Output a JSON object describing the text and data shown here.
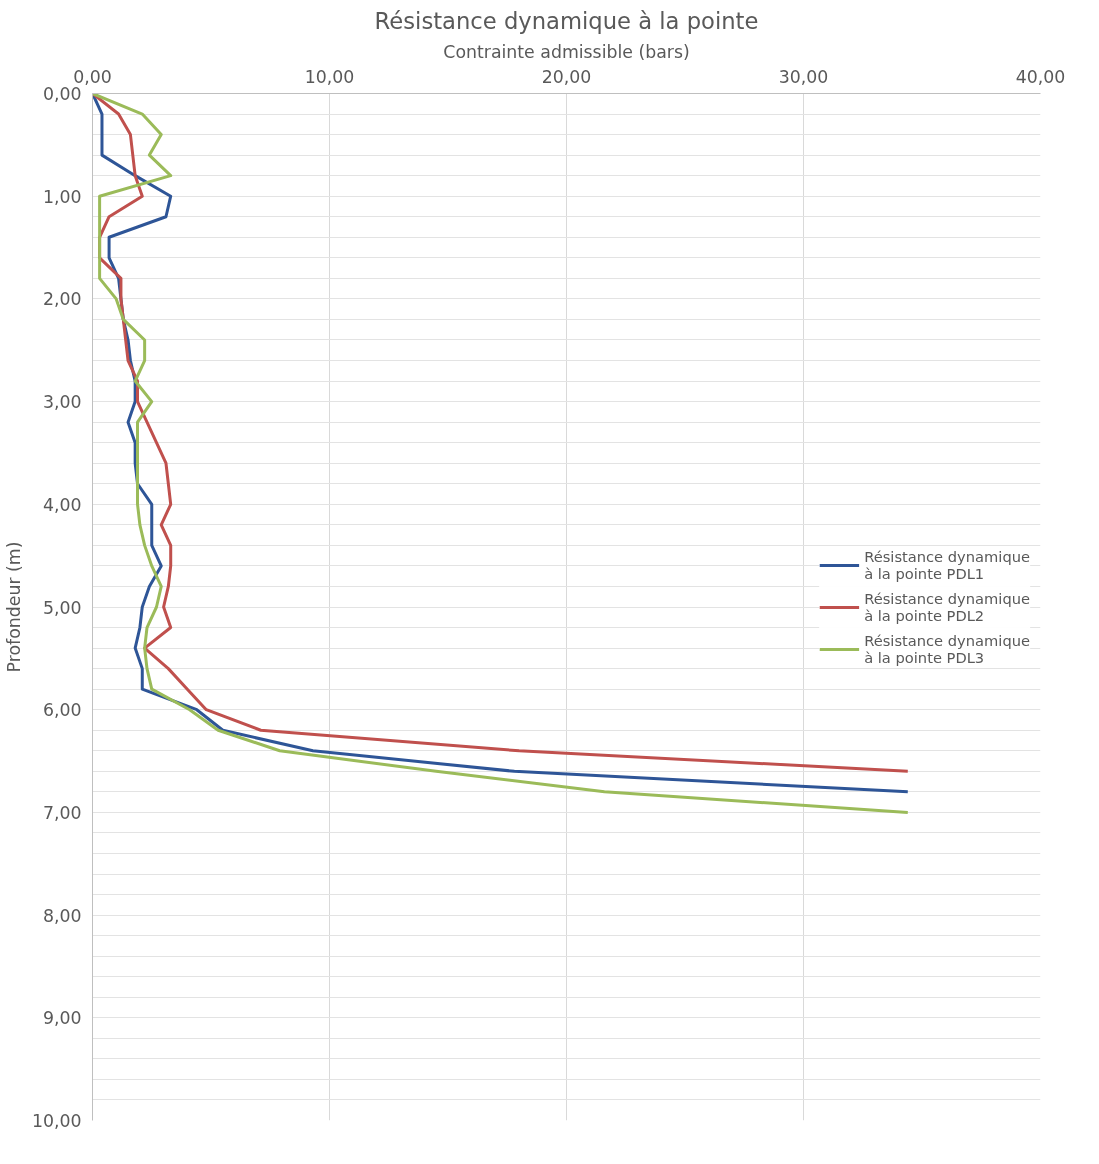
{
  "chart_data": {
    "type": "line",
    "orientation": "horizontal",
    "title": "Résistance dynamique à la pointe",
    "xlabel": "Contrainte admissible (bars)",
    "ylabel": "Profondeur (m)",
    "xlim": [
      0,
      40
    ],
    "xticks": [
      {
        "value": 0,
        "label": "0,00"
      },
      {
        "value": 10,
        "label": "10,00"
      },
      {
        "value": 20,
        "label": "20,00"
      },
      {
        "value": 30,
        "label": "30,00"
      },
      {
        "value": 40,
        "label": "40,00"
      }
    ],
    "ylim": [
      10,
      0
    ],
    "yticks": [
      {
        "value": 0,
        "label": "0,00"
      },
      {
        "value": 0.2,
        "label": null
      },
      {
        "value": 0.4,
        "label": null
      },
      {
        "value": 0.6,
        "label": null
      },
      {
        "value": 0.8,
        "label": null
      },
      {
        "value": 1,
        "label": "1,00"
      },
      {
        "value": 1.2,
        "label": null
      },
      {
        "value": 1.4,
        "label": null
      },
      {
        "value": 1.6,
        "label": null
      },
      {
        "value": 1.8,
        "label": null
      },
      {
        "value": 2,
        "label": "2,00"
      },
      {
        "value": 2.2,
        "label": null
      },
      {
        "value": 2.4,
        "label": null
      },
      {
        "value": 2.6,
        "label": null
      },
      {
        "value": 2.8,
        "label": null
      },
      {
        "value": 3,
        "label": "3,00"
      },
      {
        "value": 3.2,
        "label": null
      },
      {
        "value": 3.4,
        "label": null
      },
      {
        "value": 3.6,
        "label": null
      },
      {
        "value": 3.8,
        "label": null
      },
      {
        "value": 4,
        "label": "4,00"
      },
      {
        "value": 4.2,
        "label": null
      },
      {
        "value": 4.4,
        "label": null
      },
      {
        "value": 4.6,
        "label": null
      },
      {
        "value": 4.8,
        "label": null
      },
      {
        "value": 5,
        "label": "5,00"
      },
      {
        "value": 5.2,
        "label": null
      },
      {
        "value": 5.4,
        "label": null
      },
      {
        "value": 5.6,
        "label": null
      },
      {
        "value": 5.8,
        "label": null
      },
      {
        "value": 6,
        "label": "6,00"
      },
      {
        "value": 6.2,
        "label": null
      },
      {
        "value": 6.4,
        "label": null
      },
      {
        "value": 6.6,
        "label": null
      },
      {
        "value": 6.8,
        "label": null
      },
      {
        "value": 7,
        "label": "7,00"
      },
      {
        "value": 7.2,
        "label": null
      },
      {
        "value": 7.4,
        "label": null
      },
      {
        "value": 7.6,
        "label": null
      },
      {
        "value": 7.8,
        "label": null
      },
      {
        "value": 8,
        "label": "8,00"
      },
      {
        "value": 8.2,
        "label": null
      },
      {
        "value": 8.4,
        "label": null
      },
      {
        "value": 8.6,
        "label": null
      },
      {
        "value": 8.8,
        "label": null
      },
      {
        "value": 9,
        "label": "9,00"
      },
      {
        "value": 9.2,
        "label": null
      },
      {
        "value": 9.4,
        "label": null
      },
      {
        "value": 9.6,
        "label": null
      },
      {
        "value": 9.8,
        "label": null
      },
      {
        "value": 10,
        "label": "10,00"
      }
    ],
    "grid": true,
    "legend": "right",
    "marker": "none",
    "line_style": "solid",
    "series": [
      {
        "name": "Résistance dynamique à la pointe PDL1",
        "color": "#2e5597",
        "x": [
          0,
          0.2,
          0.4,
          0.6,
          0.8,
          1.0,
          1.2,
          1.4,
          1.6,
          1.8,
          2.0,
          2.2,
          2.4,
          2.6,
          2.8,
          3.0,
          3.2,
          3.4,
          3.6,
          3.8,
          4.0,
          4.2,
          4.4,
          4.6,
          4.8,
          5.0,
          5.2,
          5.4,
          5.6,
          5.8,
          6.0,
          6.2,
          6.4,
          6.6,
          6.8
        ],
        "values": [
          0,
          0.4,
          0.4,
          0.4,
          1.8,
          3.3,
          3.1,
          0.7,
          0.7,
          1.1,
          1.2,
          1.3,
          1.5,
          1.6,
          1.8,
          1.8,
          1.5,
          1.8,
          1.8,
          1.9,
          2.5,
          2.5,
          2.5,
          2.9,
          2.4,
          2.1,
          2.0,
          1.8,
          2.1,
          2.1,
          4.4,
          5.5,
          9.3,
          17.8,
          34.4
        ]
      },
      {
        "name": "Résistance dynamique à la pointe PDL2",
        "color": "#c0504d",
        "x": [
          0,
          0.2,
          0.4,
          0.6,
          0.8,
          1.0,
          1.2,
          1.4,
          1.6,
          1.8,
          2.0,
          2.2,
          2.4,
          2.6,
          2.8,
          3.0,
          3.2,
          3.4,
          3.6,
          3.8,
          4.0,
          4.2,
          4.4,
          4.6,
          4.8,
          5.0,
          5.2,
          5.4,
          5.6,
          5.8,
          6.0,
          6.2,
          6.4,
          6.6
        ],
        "values": [
          0,
          1.1,
          1.6,
          1.7,
          1.8,
          2.1,
          0.7,
          0.3,
          0.3,
          1.2,
          1.2,
          1.3,
          1.4,
          1.5,
          1.9,
          1.9,
          2.3,
          2.7,
          3.1,
          3.2,
          3.3,
          2.9,
          3.3,
          3.3,
          3.2,
          3.0,
          3.3,
          2.2,
          3.2,
          4.0,
          4.8,
          7.1,
          18.0,
          34.4
        ]
      },
      {
        "name": "Résistance dynamique à la pointe PDL3",
        "color": "#9bbb59",
        "x": [
          0,
          0.2,
          0.4,
          0.6,
          0.8,
          1.0,
          1.2,
          1.4,
          1.6,
          1.8,
          2.0,
          2.2,
          2.4,
          2.6,
          2.8,
          3.0,
          3.2,
          3.4,
          3.6,
          3.8,
          4.0,
          4.2,
          4.4,
          4.6,
          4.8,
          5.0,
          5.2,
          5.4,
          5.6,
          5.8,
          6.0,
          6.2,
          6.4,
          6.6,
          6.8,
          7.0
        ],
        "values": [
          0,
          2.1,
          2.9,
          2.4,
          3.3,
          0.3,
          0.3,
          0.3,
          0.3,
          0.3,
          1.0,
          1.3,
          2.2,
          2.2,
          1.8,
          2.5,
          1.9,
          1.9,
          1.9,
          1.9,
          1.9,
          2.0,
          2.2,
          2.5,
          2.9,
          2.7,
          2.3,
          2.2,
          2.3,
          2.5,
          4.1,
          5.3,
          7.9,
          14.5,
          21.6,
          34.4
        ]
      }
    ]
  }
}
